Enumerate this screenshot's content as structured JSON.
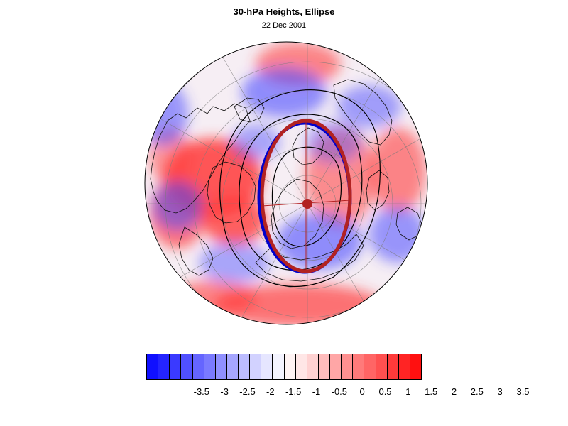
{
  "title": "30-hPa Heights, Ellipse",
  "subtitle": "22 Dec 2001",
  "legend": {
    "ticks": [
      "-3.5",
      "-3",
      "-2.5",
      "-2",
      "-1.5",
      "-1",
      "-0.5",
      "0",
      "0.5",
      "1",
      "1.5",
      "2",
      "2.5",
      "3",
      "3.5"
    ],
    "colors": [
      "#1010ff",
      "#2424ff",
      "#3a3aff",
      "#5050ff",
      "#6565ff",
      "#7a7aff",
      "#9090ff",
      "#a6a6ff",
      "#bcbcff",
      "#d2d2ff",
      "#e6e6ff",
      "#f4f4ff",
      "#fff4f4",
      "#ffe6e6",
      "#ffd2d2",
      "#ffbcbc",
      "#ffa6a6",
      "#ff9090",
      "#ff7a7a",
      "#ff6565",
      "#ff5050",
      "#ff3a3a",
      "#ff2424",
      "#ff1010"
    ]
  },
  "map": {
    "projection": "orthographic polar (north pole)",
    "field": "height anomaly",
    "ellipse_color": "#b22222",
    "ellipse_fit_color": "#0000cc",
    "contour_color": "#000000",
    "positive_color": "#ff3b3b",
    "negative_color": "#4b4bff"
  }
}
